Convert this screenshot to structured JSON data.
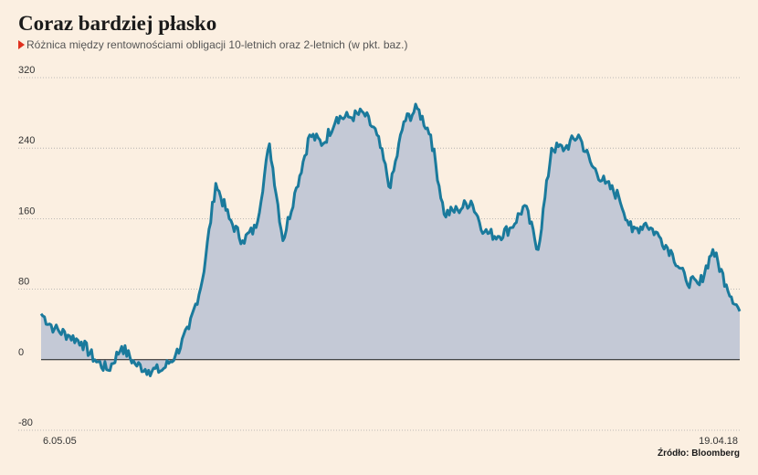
{
  "title": "Coraz bardziej płasko",
  "subtitle": "Różnica między rentownościami obligacji 10-letnich oraz 2-letnich (w pkt. baz.)",
  "source": "Źródło: Bloomberg",
  "colors": {
    "line": "#1a7a9c",
    "area": "#c4c9d6",
    "background": "#fbefe1",
    "marker": "#e0301e"
  },
  "chart_data": {
    "type": "area",
    "yticks": [
      320,
      240,
      160,
      80,
      0,
      -80
    ],
    "ylim": [
      -80,
      320
    ],
    "xlabels": [
      "6.05.05",
      "19.04.18"
    ],
    "grid": true,
    "x": [
      "2005-05",
      "2005-08",
      "2005-11",
      "2006-02",
      "2006-05",
      "2006-08",
      "2006-11",
      "2007-02",
      "2007-05",
      "2007-08",
      "2007-11",
      "2008-02",
      "2008-05",
      "2008-08",
      "2008-11",
      "2009-02",
      "2009-05",
      "2009-08",
      "2009-11",
      "2010-02",
      "2010-05",
      "2010-08",
      "2010-11",
      "2011-02",
      "2011-05",
      "2011-08",
      "2011-11",
      "2012-02",
      "2012-05",
      "2012-08",
      "2012-11",
      "2013-02",
      "2013-05",
      "2013-08",
      "2013-11",
      "2014-02",
      "2014-05",
      "2014-08",
      "2014-11",
      "2015-02",
      "2015-05",
      "2015-08",
      "2015-11",
      "2016-02",
      "2016-05",
      "2016-08",
      "2016-11",
      "2017-02",
      "2017-05",
      "2017-08",
      "2017-11",
      "2018-02",
      "2018-04"
    ],
    "values": [
      52,
      35,
      28,
      20,
      0,
      -12,
      15,
      -5,
      -12,
      -12,
      5,
      35,
      90,
      200,
      160,
      135,
      150,
      245,
      135,
      195,
      255,
      245,
      275,
      275,
      280,
      255,
      195,
      270,
      285,
      255,
      165,
      170,
      180,
      145,
      140,
      150,
      175,
      125,
      240,
      240,
      255,
      220,
      200,
      185,
      145,
      155,
      140,
      120,
      90,
      85,
      125,
      85,
      55
    ]
  }
}
